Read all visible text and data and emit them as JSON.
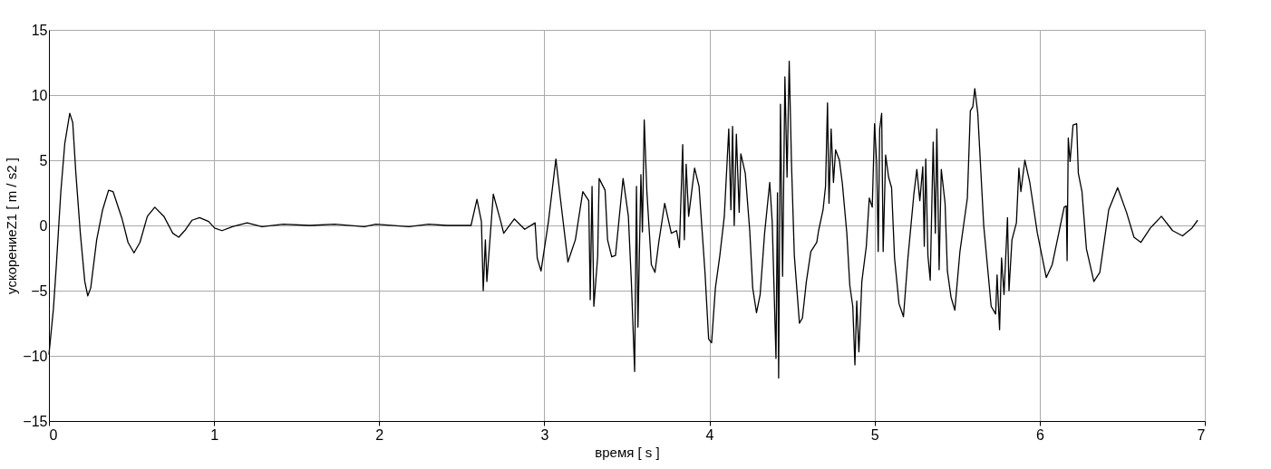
{
  "chart_data": {
    "type": "line",
    "xlabel": "время   [ s ]",
    "ylabel": "ускорениеZ1   [ m / s2 ]",
    "xlim": [
      0,
      7
    ],
    "ylim": [
      -15,
      15
    ],
    "xticks": [
      0,
      1,
      2,
      3,
      4,
      5,
      6,
      7
    ],
    "yticks": [
      -15,
      -10,
      -5,
      0,
      5,
      10,
      15
    ],
    "grid": true,
    "line_style": "solid",
    "marker": "none",
    "series": [
      {
        "color": "#000000",
        "x": [
          0,
          0.027,
          0.045,
          0.072,
          0.096,
          0.126,
          0.144,
          0.163,
          0.19,
          0.217,
          0.235,
          0.253,
          0.289,
          0.325,
          0.361,
          0.388,
          0.443,
          0.479,
          0.515,
          0.551,
          0.596,
          0.641,
          0.696,
          0.75,
          0.786,
          0.822,
          0.867,
          0.912,
          0.967,
          1.003,
          1.048,
          1.11,
          1.2,
          1.29,
          1.42,
          1.58,
          1.73,
          1.91,
          1.98,
          2.18,
          2.3,
          2.41,
          2.556,
          2.592,
          2.619,
          2.63,
          2.643,
          2.652,
          2.691,
          2.736,
          2.754,
          2.818,
          2.881,
          2.944,
          2.957,
          2.98,
          3.025,
          3.07,
          3.097,
          3.143,
          3.188,
          3.233,
          3.269,
          3.278,
          3.289,
          3.3,
          3.323,
          3.332,
          3.368,
          3.383,
          3.408,
          3.431,
          3.477,
          3.509,
          3.527,
          3.547,
          3.558,
          3.567,
          3.585,
          3.594,
          3.605,
          3.621,
          3.648,
          3.67,
          3.693,
          3.729,
          3.769,
          3.801,
          3.818,
          3.838,
          3.848,
          3.859,
          3.874,
          3.91,
          3.937,
          3.973,
          3.995,
          4.013,
          4.036,
          4.063,
          4.09,
          4.117,
          4.13,
          4.14,
          4.15,
          4.163,
          4.18,
          4.19,
          4.217,
          4.244,
          4.262,
          4.285,
          4.307,
          4.334,
          4.365,
          4.38,
          4.403,
          4.412,
          4.419,
          4.43,
          4.443,
          4.457,
          4.47,
          4.483,
          4.497,
          4.514,
          4.545,
          4.563,
          4.587,
          4.614,
          4.65,
          4.661,
          4.688,
          4.703,
          4.715,
          4.724,
          4.737,
          4.751,
          4.764,
          4.787,
          4.805,
          4.832,
          4.85,
          4.868,
          4.881,
          4.892,
          4.905,
          4.923,
          4.95,
          4.968,
          4.986,
          5.0,
          5.013,
          5.022,
          5.031,
          5.043,
          5.052,
          5.067,
          5.085,
          5.103,
          5.121,
          5.148,
          5.175,
          5.202,
          5.238,
          5.256,
          5.274,
          5.292,
          5.301,
          5.31,
          5.323,
          5.337,
          5.355,
          5.368,
          5.377,
          5.391,
          5.404,
          5.427,
          5.441,
          5.463,
          5.486,
          5.517,
          5.562,
          5.58,
          5.595,
          5.607,
          5.625,
          5.661,
          5.706,
          5.733,
          5.742,
          5.757,
          5.769,
          5.784,
          5.805,
          5.814,
          5.832,
          5.859,
          5.874,
          5.886,
          5.91,
          5.94,
          5.986,
          6.04,
          6.076,
          6.148,
          6.161,
          6.166,
          6.173,
          6.184,
          6.202,
          6.224,
          6.234,
          6.256,
          6.283,
          6.328,
          6.364,
          6.418,
          6.472,
          6.526,
          6.571,
          6.613,
          6.67,
          6.737,
          6.805,
          6.865,
          6.922,
          6.957
        ],
        "values": [
          -9.9,
          -6.4,
          -3.0,
          2.6,
          6.3,
          8.6,
          7.9,
          4.0,
          -0.6,
          -4.3,
          -5.4,
          -4.8,
          -1.1,
          1.2,
          2.7,
          2.6,
          0.5,
          -1.3,
          -2.1,
          -1.3,
          0.7,
          1.4,
          0.7,
          -0.6,
          -0.9,
          -0.4,
          0.4,
          0.6,
          0.3,
          -0.2,
          -0.4,
          -0.1,
          0.2,
          -0.1,
          0.1,
          0,
          0.1,
          -0.1,
          0.1,
          -0.1,
          0.1,
          0,
          0.0,
          2.0,
          0.3,
          -5.0,
          -1.1,
          -4.3,
          2.4,
          0.3,
          -0.6,
          0.5,
          -0.3,
          0.2,
          -2.5,
          -3.5,
          0.3,
          5.1,
          2.1,
          -2.8,
          -1.1,
          2.6,
          1.9,
          -5.7,
          3.0,
          -6.2,
          -2.4,
          3.6,
          2.7,
          -1.1,
          -2.4,
          -2.3,
          3.6,
          0.7,
          -4.3,
          -11.2,
          3.0,
          -7.8,
          3.9,
          -0.5,
          8.1,
          2.6,
          -3.0,
          -3.6,
          -1.3,
          1.7,
          -0.6,
          -0.4,
          -1.7,
          6.2,
          -1.1,
          4.7,
          0.7,
          4.4,
          3.0,
          -3.6,
          -8.7,
          -9.0,
          -4.8,
          -2.3,
          0.7,
          7.4,
          1.2,
          7.6,
          0.0,
          7.0,
          1.0,
          5.5,
          4.0,
          -0.4,
          -4.8,
          -6.7,
          -5.3,
          -0.6,
          3.3,
          0.3,
          -10.2,
          2.5,
          -11.7,
          9.3,
          -3.9,
          11.4,
          3.7,
          12.6,
          4.7,
          -2.3,
          -7.5,
          -7.1,
          -4.3,
          -2.0,
          -1.3,
          -0.4,
          1.2,
          3.0,
          9.4,
          1.7,
          7.4,
          3.3,
          5.8,
          5.0,
          3.2,
          -0.6,
          -4.6,
          -6.2,
          -10.7,
          -5.8,
          -9.7,
          -4.3,
          -1.6,
          2.1,
          1.4,
          7.8,
          4.7,
          -2.0,
          7.4,
          8.6,
          -2.0,
          5.4,
          3.7,
          2.9,
          -2.5,
          -6.0,
          -7.0,
          -2.5,
          2.4,
          4.3,
          1.9,
          4.5,
          -1.6,
          5.1,
          -2.3,
          -4.2,
          6.4,
          -0.6,
          7.4,
          -3.4,
          4.3,
          1.7,
          -3.5,
          -5.5,
          -6.5,
          -2.0,
          2.1,
          8.8,
          9.1,
          10.5,
          8.6,
          0.0,
          -6.2,
          -6.8,
          -3.8,
          -8.0,
          -2.5,
          -5.3,
          0.6,
          -5.0,
          -1.1,
          0.2,
          4.4,
          2.6,
          5.0,
          3.3,
          -0.6,
          -4.0,
          -3.0,
          1.4,
          1.5,
          -2.7,
          6.7,
          4.9,
          7.7,
          7.8,
          4.0,
          2.6,
          -1.8,
          -4.3,
          -3.6,
          1.2,
          2.9,
          1.0,
          -0.9,
          -1.3,
          -0.2,
          0.7,
          -0.4,
          -0.8,
          -0.2,
          0.4
        ]
      }
    ]
  }
}
